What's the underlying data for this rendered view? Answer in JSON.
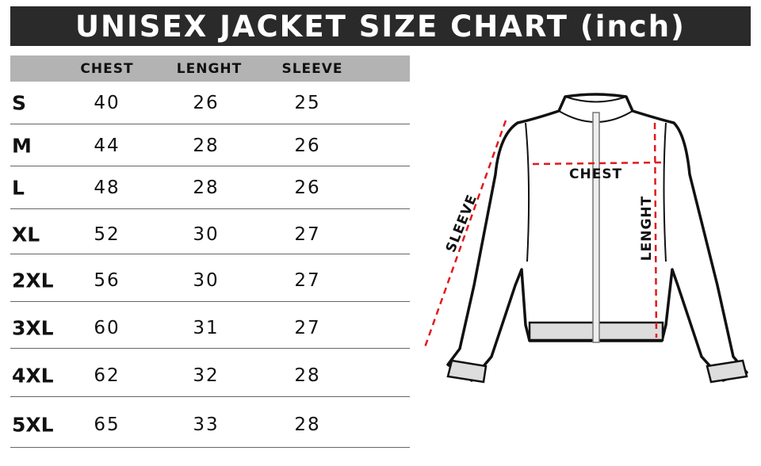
{
  "title": "UNISEX JACKET SIZE CHART (inch)",
  "table": {
    "headers": [
      "CHEST",
      "LENGHT",
      "SLEEVE"
    ],
    "rows": [
      {
        "size": "S",
        "chest": "40",
        "length": "26",
        "sleeve": "25"
      },
      {
        "size": "M",
        "chest": "44",
        "length": "28",
        "sleeve": "26"
      },
      {
        "size": "L",
        "chest": "48",
        "length": "28",
        "sleeve": "26"
      },
      {
        "size": "XL",
        "chest": "52",
        "length": "30",
        "sleeve": "27"
      },
      {
        "size": "2XL",
        "chest": "56",
        "length": "30",
        "sleeve": "27"
      },
      {
        "size": "3XL",
        "chest": "60",
        "length": "31",
        "sleeve": "27"
      },
      {
        "size": "4XL",
        "chest": "62",
        "length": "32",
        "sleeve": "28"
      },
      {
        "size": "5XL",
        "chest": "65",
        "length": "33",
        "sleeve": "28"
      }
    ]
  },
  "diagram": {
    "chest_label": "CHEST",
    "length_label": "LENGHT",
    "sleeve_label": "SLEEVE",
    "measure_color": "#e0191e"
  },
  "colors": {
    "title_bg": "#2a2a2a",
    "header_bg": "#b3b3b3"
  }
}
